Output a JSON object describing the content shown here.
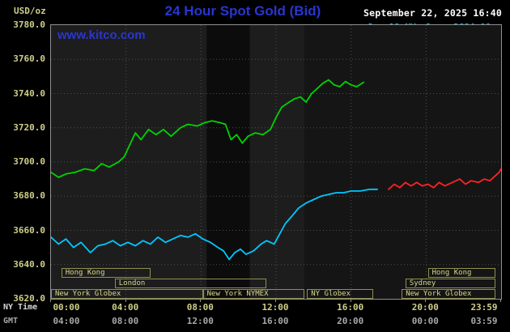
{
  "header": {
    "units_label": "USD/oz",
    "title": "24 Hour Spot Gold (Bid)",
    "datetime": "September 22, 2025 16:40",
    "watermark": "www.kitco.com",
    "legend": [
      {
        "label": "Sep 19 NY close 3684.00",
        "color": "#00c8ff"
      },
      {
        "label": "Sep 21 Sunday",
        "color": "#ff2222"
      },
      {
        "label": "Sep 22 Last 3746.60",
        "color": "#00d400"
      }
    ]
  },
  "axes": {
    "ny_label": "NY Time",
    "gmt_label": "GMT",
    "xtick_hours": [
      0,
      4,
      8,
      12,
      16,
      20,
      24
    ],
    "xticks_ny": [
      "00:00",
      "04:00",
      "08:00",
      "12:00",
      "16:00",
      "20:00",
      "23:59"
    ],
    "xticks_gmt": [
      "04:00",
      "08:00",
      "12:00",
      "16:00",
      "20:00",
      "00:00",
      "03:59"
    ]
  },
  "sessions": [
    {
      "row": 0,
      "start": 0.55,
      "end": 5.3,
      "label": "Hong Kong"
    },
    {
      "row": 0,
      "start": 20.1,
      "end": 23.7,
      "label": "Hong Kong"
    },
    {
      "row": 1,
      "start": 3.4,
      "end": 11.5,
      "label": "London"
    },
    {
      "row": 1,
      "start": 18.9,
      "end": 23.7,
      "label": "Sydney"
    },
    {
      "row": 2,
      "start": 0.0,
      "end": 8.1,
      "label": "New York Globex"
    },
    {
      "row": 2,
      "start": 8.1,
      "end": 13.5,
      "label": "New York NYMEX"
    },
    {
      "row": 2,
      "start": 13.65,
      "end": 17.2,
      "label": "NY Globex"
    },
    {
      "row": 2,
      "start": 18.7,
      "end": 23.7,
      "label": "New York Globex"
    }
  ],
  "chart_data": {
    "type": "line",
    "title": "24 Hour Spot Gold (Bid)",
    "ylabel": "USD/oz",
    "ylim": [
      3620,
      3780
    ],
    "yticks": [
      3620,
      3640,
      3660,
      3680,
      3700,
      3720,
      3740,
      3760,
      3780
    ],
    "ygrid": [
      3640,
      3660,
      3680,
      3700,
      3720,
      3740,
      3760
    ],
    "xgrid_hours": [
      4,
      8,
      12,
      16,
      20
    ],
    "x_hours_range": [
      0,
      24
    ],
    "grid_color": "#505050",
    "bands": [
      {
        "start": 0,
        "end": 8.3,
        "color": "#1d1d1d"
      },
      {
        "start": 8.3,
        "end": 10.6,
        "color": "#0c0c0c"
      },
      {
        "start": 10.6,
        "end": 13.5,
        "color": "#1d1d1d"
      },
      {
        "start": 13.5,
        "end": 24,
        "color": "#151515"
      }
    ],
    "series": [
      {
        "name": "Sep 19 NY close 3684.00",
        "color": "#00c8ff",
        "close_value": 3684.0,
        "points": [
          [
            0,
            3656
          ],
          [
            0.4,
            3652
          ],
          [
            0.8,
            3655
          ],
          [
            1.2,
            3650
          ],
          [
            1.6,
            3653
          ],
          [
            2.1,
            3647
          ],
          [
            2.5,
            3651
          ],
          [
            2.9,
            3652
          ],
          [
            3.3,
            3654
          ],
          [
            3.7,
            3651
          ],
          [
            4.1,
            3653
          ],
          [
            4.5,
            3651
          ],
          [
            4.9,
            3654
          ],
          [
            5.3,
            3652
          ],
          [
            5.7,
            3656
          ],
          [
            6.1,
            3653
          ],
          [
            6.5,
            3655
          ],
          [
            6.9,
            3657
          ],
          [
            7.3,
            3656
          ],
          [
            7.7,
            3658
          ],
          [
            8.1,
            3655
          ],
          [
            8.5,
            3653
          ],
          [
            8.9,
            3650
          ],
          [
            9.2,
            3648
          ],
          [
            9.5,
            3643
          ],
          [
            9.8,
            3647
          ],
          [
            10.1,
            3649
          ],
          [
            10.4,
            3646
          ],
          [
            10.8,
            3648
          ],
          [
            11.2,
            3652
          ],
          [
            11.5,
            3654
          ],
          [
            11.9,
            3652
          ],
          [
            12.2,
            3658
          ],
          [
            12.5,
            3664
          ],
          [
            12.9,
            3669
          ],
          [
            13.2,
            3673
          ],
          [
            13.6,
            3676
          ],
          [
            14.0,
            3678
          ],
          [
            14.4,
            3680
          ],
          [
            14.8,
            3681
          ],
          [
            15.2,
            3682
          ],
          [
            15.6,
            3682
          ],
          [
            16.0,
            3683
          ],
          [
            16.5,
            3683
          ],
          [
            17.0,
            3684
          ],
          [
            17.4,
            3684
          ]
        ]
      },
      {
        "name": "Sep 21 Sunday",
        "color": "#ff2222",
        "points": [
          [
            18.0,
            3684
          ],
          [
            18.3,
            3687
          ],
          [
            18.6,
            3685
          ],
          [
            18.9,
            3688
          ],
          [
            19.2,
            3686
          ],
          [
            19.5,
            3688
          ],
          [
            19.8,
            3686
          ],
          [
            20.1,
            3687
          ],
          [
            20.4,
            3685
          ],
          [
            20.7,
            3688
          ],
          [
            21.0,
            3686
          ],
          [
            21.4,
            3688
          ],
          [
            21.8,
            3690
          ],
          [
            22.1,
            3687
          ],
          [
            22.4,
            3689
          ],
          [
            22.8,
            3688
          ],
          [
            23.1,
            3690
          ],
          [
            23.4,
            3689
          ],
          [
            23.7,
            3692
          ],
          [
            23.9,
            3694
          ],
          [
            24.0,
            3696
          ]
        ]
      },
      {
        "name": "Sep 22 Last 3746.60",
        "color": "#00d400",
        "last_value": 3746.6,
        "points": [
          [
            0,
            3694
          ],
          [
            0.4,
            3691
          ],
          [
            0.8,
            3693
          ],
          [
            1.3,
            3694
          ],
          [
            1.8,
            3696
          ],
          [
            2.3,
            3695
          ],
          [
            2.7,
            3699
          ],
          [
            3.1,
            3697
          ],
          [
            3.6,
            3700
          ],
          [
            3.9,
            3703
          ],
          [
            4.2,
            3710
          ],
          [
            4.5,
            3717
          ],
          [
            4.8,
            3713
          ],
          [
            5.2,
            3719
          ],
          [
            5.6,
            3716
          ],
          [
            6.0,
            3719
          ],
          [
            6.4,
            3715
          ],
          [
            6.9,
            3720
          ],
          [
            7.3,
            3722
          ],
          [
            7.8,
            3721
          ],
          [
            8.2,
            3723
          ],
          [
            8.6,
            3724
          ],
          [
            9.0,
            3723
          ],
          [
            9.3,
            3722
          ],
          [
            9.6,
            3713
          ],
          [
            9.9,
            3716
          ],
          [
            10.2,
            3711
          ],
          [
            10.5,
            3715
          ],
          [
            10.9,
            3717
          ],
          [
            11.3,
            3716
          ],
          [
            11.7,
            3719
          ],
          [
            12.0,
            3726
          ],
          [
            12.3,
            3732
          ],
          [
            12.7,
            3735
          ],
          [
            13.0,
            3737
          ],
          [
            13.3,
            3738
          ],
          [
            13.6,
            3735
          ],
          [
            13.9,
            3740
          ],
          [
            14.2,
            3743
          ],
          [
            14.5,
            3746
          ],
          [
            14.8,
            3748
          ],
          [
            15.1,
            3745
          ],
          [
            15.4,
            3744
          ],
          [
            15.7,
            3747
          ],
          [
            16.0,
            3745
          ],
          [
            16.3,
            3744
          ],
          [
            16.67,
            3746.6
          ]
        ]
      }
    ]
  }
}
